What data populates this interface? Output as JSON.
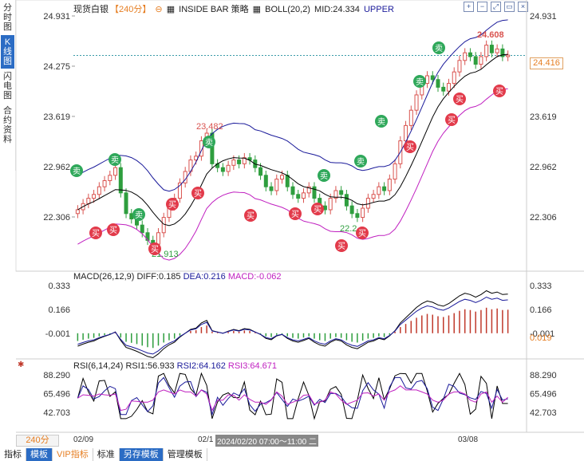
{
  "sidebar": {
    "tabs": [
      {
        "label": "分时图",
        "active": false
      },
      {
        "label": "K线图",
        "active": true
      },
      {
        "label": "闪电图",
        "active": false
      },
      {
        "label": "合约资料",
        "active": false
      }
    ]
  },
  "header": {
    "instrument": "现货白银",
    "period": "【240分】",
    "strategy": "INSIDE BAR 策略",
    "indicator": "BOLL(20,2)",
    "mid_label": "MID:24.334",
    "upper_label": "UPPER",
    "icons": [
      "zoom-in-icon",
      "zoom-out-icon",
      "fullscreen-icon",
      "window-icon",
      "close-icon"
    ]
  },
  "price_axis": {
    "ticks": [
      "24.931",
      "24.275",
      "23.619",
      "22.962",
      "22.306"
    ],
    "current": "24.416"
  },
  "annotations": {
    "high": "24.608",
    "mid_high": "23.482",
    "low": "21.913",
    "low2": "22.2",
    "buy_label": "买",
    "sell_label": "卖"
  },
  "macd": {
    "title": "MACD(26,12,9)",
    "diff": "DIFF:0.185",
    "dea": "DEA:0.216",
    "macd": "MACD:-0.062",
    "ticks": [
      "0.333",
      "0.166",
      "-0.001"
    ],
    "current": "0.019",
    "colors": {
      "diff": "#000000",
      "dea": "#1a1a9a",
      "pos": "#c0392b",
      "neg": "#2e9e3e"
    }
  },
  "rsi": {
    "title": "RSI(6,14,24)",
    "rsi1": "RSI1:56.933",
    "rsi2": "RSI2:64.162",
    "rsi3": "RSI3:64.671",
    "ticks": [
      "88.290",
      "65.496",
      "42.703"
    ]
  },
  "date_bar": {
    "period_button": "240分",
    "dates": [
      "02/09",
      "02/1",
      "03/08"
    ],
    "cursor": "2024/02/20 07:00～11:00 二"
  },
  "bottom_tabs": [
    "指标",
    "模板",
    "VIP指标",
    "标准",
    "另存模板",
    "管理模板"
  ],
  "colors": {
    "up": "#d9534f",
    "down": "#2e9e3e",
    "boll_mid": "#000000",
    "boll_upper": "#1a1a9a",
    "boll_lower": "#c020c0",
    "accent": "#2b6cc4"
  },
  "chart_data": {
    "type": "candlestick",
    "closes": [
      22.4,
      22.48,
      22.55,
      22.6,
      22.7,
      22.78,
      22.85,
      22.95,
      22.62,
      22.35,
      22.28,
      22.2,
      22.1,
      22.0,
      21.95,
      22.1,
      22.3,
      22.45,
      22.55,
      22.75,
      22.9,
      23.05,
      23.1,
      23.3,
      23.4,
      23.0,
      22.95,
      22.9,
      22.98,
      23.05,
      23.0,
      23.08,
      23.05,
      22.95,
      22.85,
      22.7,
      22.65,
      22.8,
      22.85,
      22.7,
      22.6,
      22.55,
      22.62,
      22.7,
      22.55,
      22.45,
      22.4,
      22.55,
      22.65,
      22.6,
      22.45,
      22.35,
      22.3,
      22.42,
      22.55,
      22.6,
      22.7,
      22.65,
      22.8,
      23.0,
      23.3,
      23.5,
      23.7,
      23.9,
      24.05,
      24.15,
      24.1,
      24.0,
      23.95,
      24.05,
      24.2,
      24.35,
      24.45,
      24.4,
      24.3,
      24.4,
      24.55,
      24.45,
      24.5,
      24.4,
      24.42
    ]
  }
}
